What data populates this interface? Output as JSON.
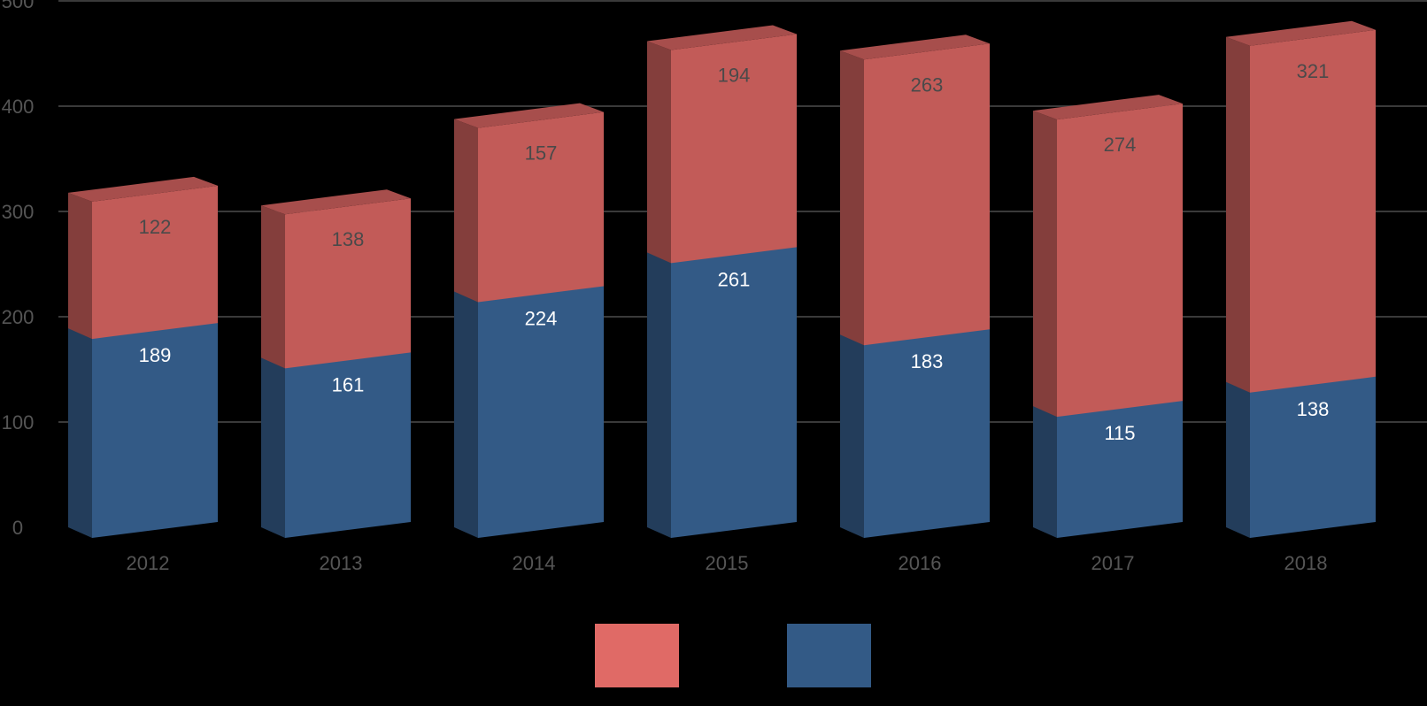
{
  "chart_data": {
    "type": "bar",
    "stacked": true,
    "three_d": true,
    "categories": [
      "2012",
      "2013",
      "2014",
      "2015",
      "2016",
      "2017",
      "2018"
    ],
    "series": [
      {
        "values": [
          189,
          161,
          224,
          261,
          183,
          115,
          138
        ],
        "color": "#335a86",
        "label_color": "#ffffff"
      },
      {
        "values": [
          122,
          138,
          157,
          194,
          263,
          274,
          321
        ],
        "color": "#c25b58",
        "label_color": "#4a4a4a"
      }
    ],
    "yticks": [
      "0",
      "100",
      "200",
      "300",
      "400",
      "500"
    ],
    "ylim": [
      0,
      500
    ],
    "grid": true,
    "legend": {
      "placement": "bottom-center",
      "colors": [
        "#e06a66",
        "#335a86"
      ]
    }
  }
}
